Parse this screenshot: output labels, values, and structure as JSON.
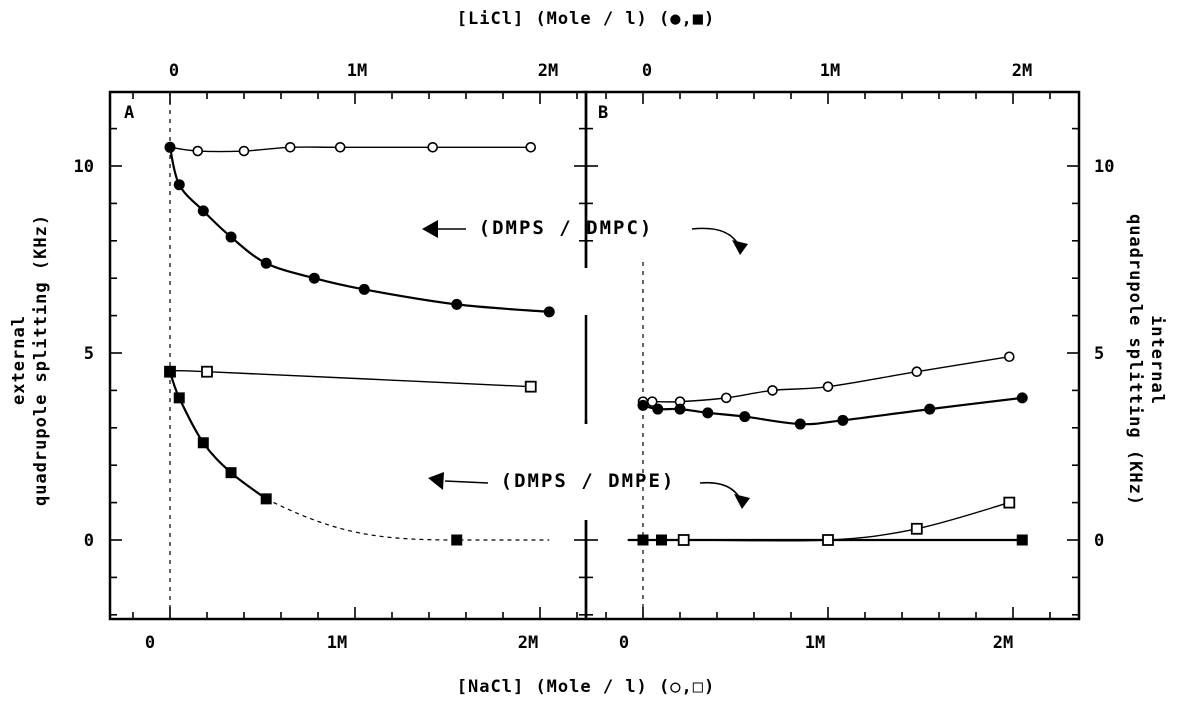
{
  "chart_data": {
    "type": "scatter",
    "top_axis_title": "[LiCl]  (Mole / l)  (●,■)",
    "bottom_axis_title": "[NaCl]  (Mole / l)  (○,□)",
    "left_axis_title_lines": [
      "external",
      "quadrupole splitting (KHz)"
    ],
    "right_axis_title_lines": [
      "internal",
      "quadrupole splitting (KHz)"
    ],
    "x_ticks": [
      "0",
      "1M",
      "2M"
    ],
    "y_ticks_left": [
      "0",
      "5",
      "10"
    ],
    "y_ticks_right": [
      "0",
      "5",
      "10"
    ],
    "ylim": [
      -2,
      12
    ],
    "xlim": [
      -0.25,
      2.35
    ],
    "grid": false,
    "annotations": [
      "(DMPS / DMPC)",
      "(DMPS / DMPE)"
    ],
    "panels": [
      {
        "label": "A",
        "series": [
          {
            "marker": "open-circle",
            "line": "solid",
            "x": [
              0,
              0.15,
              0.4,
              0.65,
              0.92,
              1.42,
              1.95
            ],
            "y": [
              10.5,
              10.4,
              10.4,
              10.5,
              10.5,
              10.5,
              10.5
            ]
          },
          {
            "marker": "filled-circle",
            "line": "solid",
            "x": [
              0,
              0.05,
              0.18,
              0.33,
              0.52,
              0.78,
              1.05,
              1.55,
              2.05
            ],
            "y": [
              10.5,
              9.5,
              8.8,
              8.1,
              7.4,
              7.0,
              6.7,
              6.3,
              6.1
            ]
          },
          {
            "marker": "open-square",
            "line": "solid",
            "x": [
              0,
              0.2,
              1.95
            ],
            "y": [
              4.5,
              4.5,
              4.1
            ]
          },
          {
            "marker": "filled-square",
            "line": "solid-then-dashed",
            "x": [
              0,
              0.05,
              0.18,
              0.33,
              0.52,
              1.55
            ],
            "y": [
              4.5,
              3.8,
              2.6,
              1.8,
              1.1,
              0.0
            ]
          }
        ]
      },
      {
        "label": "B",
        "series": [
          {
            "marker": "open-circle",
            "line": "solid",
            "x": [
              0,
              0.05,
              0.2,
              0.45,
              0.7,
              1.0,
              1.48,
              1.98
            ],
            "y": [
              3.7,
              3.7,
              3.7,
              3.8,
              4.0,
              4.1,
              4.5,
              4.9
            ]
          },
          {
            "marker": "filled-circle",
            "line": "solid",
            "x": [
              0,
              0.08,
              0.2,
              0.35,
              0.55,
              0.85,
              1.08,
              1.55,
              2.05
            ],
            "y": [
              3.6,
              3.5,
              3.5,
              3.4,
              3.3,
              3.1,
              3.2,
              3.5,
              3.8
            ]
          },
          {
            "marker": "open-square",
            "line": "solid",
            "x": [
              0.22,
              1.0,
              1.48,
              1.98
            ],
            "y": [
              0.0,
              0.0,
              0.3,
              1.0
            ]
          },
          {
            "marker": "filled-square",
            "line": "solid",
            "x": [
              0,
              0.1,
              2.05
            ],
            "y": [
              0.0,
              0.0,
              0.0
            ]
          }
        ]
      }
    ]
  }
}
